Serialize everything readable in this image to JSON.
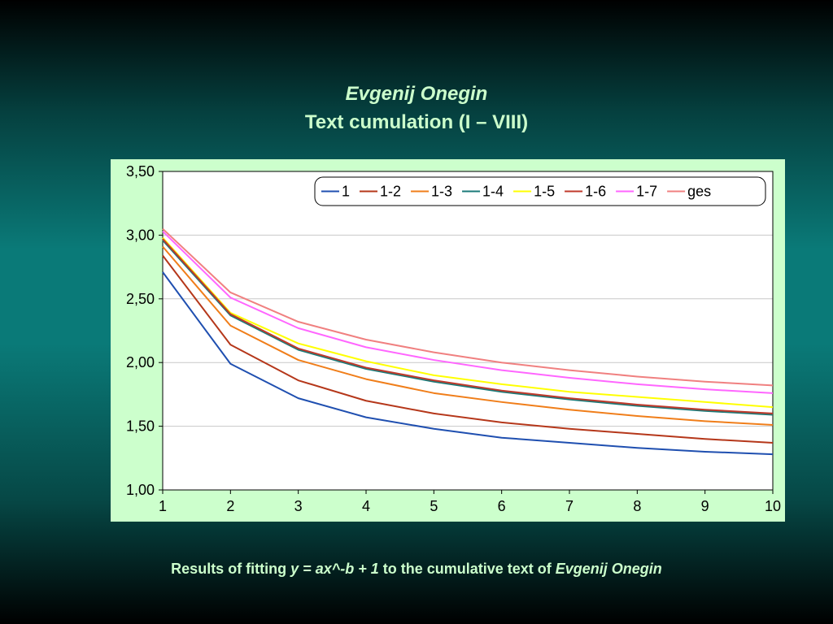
{
  "title_line1": "Evgenij Onegin",
  "title_line2": "Text cumulation (I – VIII)",
  "caption": {
    "part1": "Results of fitting ",
    "formula": "y = ax^-b + 1",
    "part2": "  to the cumulative text of ",
    "work": "Evgenij Onegin"
  },
  "colors": {
    "title_text": "#ccffcc",
    "plot_bg": "#ffffff",
    "panel_bg": "#ccffcc"
  },
  "chart_data": {
    "type": "line",
    "x": [
      1,
      2,
      3,
      4,
      5,
      6,
      7,
      8,
      9,
      10
    ],
    "xticks": [
      "1",
      "2",
      "3",
      "4",
      "5",
      "6",
      "7",
      "8",
      "9",
      "10"
    ],
    "ylim": [
      1.0,
      3.5
    ],
    "yticks": [
      "1,00",
      "1,50",
      "2,00",
      "2,50",
      "3,00",
      "3,50"
    ],
    "ytick_values": [
      1.0,
      1.5,
      2.0,
      2.5,
      3.0,
      3.5
    ],
    "grid": true,
    "legend_position": "top-right",
    "series": [
      {
        "name": "1",
        "color": "#1f4fb0",
        "values": [
          2.71,
          1.99,
          1.72,
          1.57,
          1.48,
          1.41,
          1.37,
          1.33,
          1.3,
          1.28
        ]
      },
      {
        "name": "1-2",
        "color": "#b5371a",
        "values": [
          2.84,
          2.14,
          1.86,
          1.7,
          1.6,
          1.53,
          1.48,
          1.44,
          1.4,
          1.37
        ]
      },
      {
        "name": "1-3",
        "color": "#f07e1a",
        "values": [
          2.91,
          2.29,
          2.02,
          1.87,
          1.76,
          1.69,
          1.63,
          1.58,
          1.54,
          1.51
        ]
      },
      {
        "name": "1-4",
        "color": "#1a7a78",
        "values": [
          2.96,
          2.37,
          2.1,
          1.95,
          1.85,
          1.77,
          1.71,
          1.66,
          1.62,
          1.59
        ]
      },
      {
        "name": "1-5",
        "color": "#ffff00",
        "values": [
          2.98,
          2.39,
          2.15,
          2.01,
          1.9,
          1.83,
          1.77,
          1.73,
          1.69,
          1.65
        ]
      },
      {
        "name": "1-6",
        "color": "#c0392b",
        "values": [
          2.97,
          2.38,
          2.11,
          1.96,
          1.86,
          1.78,
          1.72,
          1.67,
          1.63,
          1.6
        ]
      },
      {
        "name": "1-7",
        "color": "#ff66ff",
        "values": [
          3.03,
          2.51,
          2.27,
          2.12,
          2.02,
          1.94,
          1.88,
          1.83,
          1.79,
          1.76
        ]
      },
      {
        "name": "ges",
        "color": "#f08080",
        "values": [
          3.05,
          2.55,
          2.32,
          2.18,
          2.08,
          2.0,
          1.94,
          1.89,
          1.85,
          1.82
        ]
      }
    ]
  }
}
